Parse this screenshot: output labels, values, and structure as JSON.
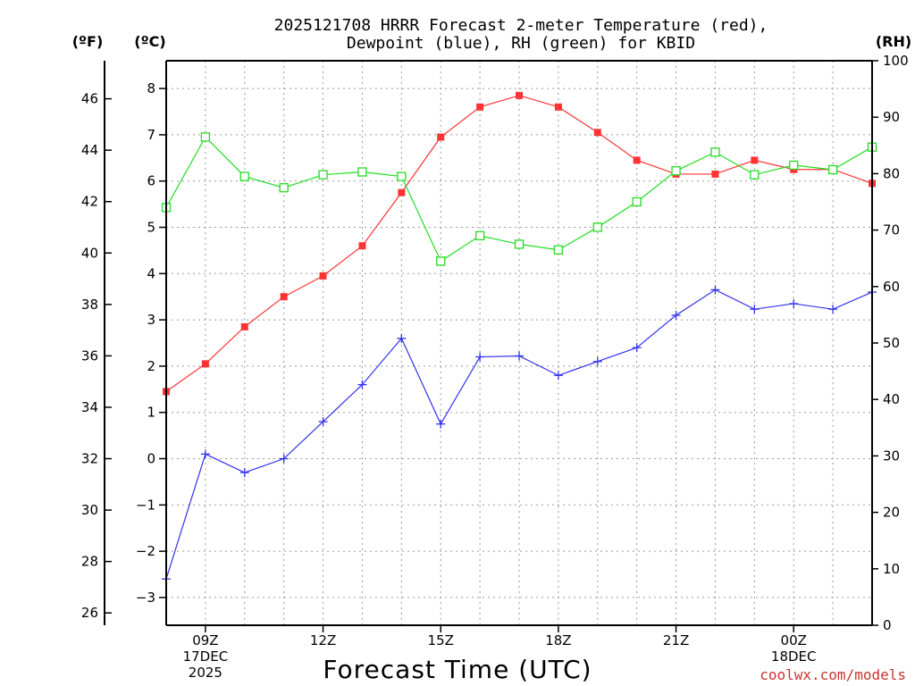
{
  "chart_data": {
    "type": "line",
    "title_line1": "2025121708 HRRR Forecast 2-meter Temperature (red),",
    "title_line2": "Dewpoint (blue), RH (green) for KBID",
    "xlabel": "Forecast Time (UTC)",
    "left_axis_label": "(ºF)",
    "mid_axis_label": "(ºC)",
    "right_axis_label": "(RH)",
    "credit": "coolwx.com/models",
    "x_hours": [
      8,
      9,
      10,
      11,
      12,
      13,
      14,
      15,
      16,
      17,
      18,
      19,
      20,
      21,
      22,
      23,
      24,
      25,
      26
    ],
    "x_range": [
      8,
      26
    ],
    "x_ticks": [
      {
        "hour": 9,
        "lines": [
          "09Z",
          "17DEC",
          "2025"
        ]
      },
      {
        "hour": 12,
        "lines": [
          "12Z"
        ]
      },
      {
        "hour": 15,
        "lines": [
          "15Z"
        ]
      },
      {
        "hour": 18,
        "lines": [
          "18Z"
        ]
      },
      {
        "hour": 21,
        "lines": [
          "21Z"
        ]
      },
      {
        "hour": 24,
        "lines": [
          "00Z",
          "18DEC"
        ]
      }
    ],
    "celsius_range": [
      -3.6,
      8.6
    ],
    "celsius_ticks": [
      -3,
      -2,
      -1,
      0,
      1,
      2,
      3,
      4,
      5,
      6,
      7,
      8
    ],
    "fahrenheit_ticks": [
      26,
      28,
      30,
      32,
      34,
      36,
      38,
      40,
      42,
      44,
      46
    ],
    "rh_range": [
      0,
      100
    ],
    "rh_ticks": [
      0,
      10,
      20,
      30,
      40,
      50,
      60,
      70,
      80,
      90,
      100
    ],
    "grid": true,
    "series": [
      {
        "name": "Temperature",
        "unit": "C",
        "color": "#ff3333",
        "marker": "filled-square",
        "values": [
          1.45,
          2.05,
          2.85,
          3.5,
          3.95,
          4.6,
          5.75,
          6.95,
          7.6,
          7.85,
          7.6,
          7.05,
          6.45,
          6.15,
          6.15,
          6.45,
          6.25,
          6.25,
          5.95
        ]
      },
      {
        "name": "Dewpoint",
        "unit": "C",
        "color": "#3333ee",
        "marker": "plus",
        "values": [
          -2.6,
          0.1,
          -0.3,
          0.0,
          0.8,
          1.6,
          2.6,
          0.75,
          2.2,
          2.22,
          1.8,
          2.1,
          2.4,
          3.1,
          3.65,
          3.23,
          3.35,
          3.23,
          3.6
        ]
      },
      {
        "name": "RH",
        "unit": "%",
        "color": "#22dd22",
        "marker": "open-square",
        "values": [
          74,
          86.5,
          79.5,
          77.5,
          79.8,
          80.3,
          79.5,
          64.5,
          69,
          67.5,
          66.5,
          70.5,
          75,
          80.5,
          83.8,
          79.8,
          81.5,
          80.7,
          84.7
        ]
      }
    ]
  }
}
